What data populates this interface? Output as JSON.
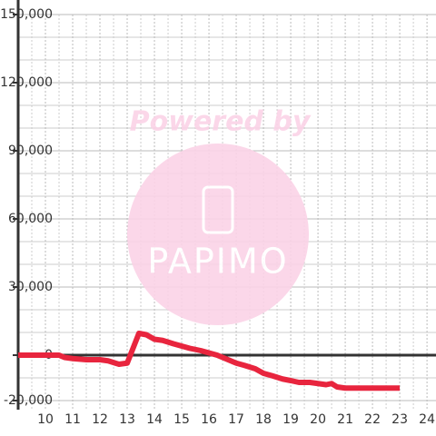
{
  "chart_data": {
    "type": "line",
    "watermark": {
      "top": "Powered by",
      "brand": "PAPIMO"
    },
    "x": [
      9,
      10.5,
      10.7,
      11,
      11.5,
      12,
      12.3,
      12.7,
      13,
      13.43,
      13.7,
      14,
      14.3,
      14.7,
      15,
      15.3,
      15.7,
      16,
      16.3,
      16.7,
      17,
      17.3,
      17.7,
      18,
      18.3,
      18.7,
      19,
      19.3,
      19.7,
      20,
      20.3,
      20.5,
      20.7,
      21,
      22,
      23
    ],
    "series": [
      {
        "color": "#e8253e",
        "values": [
          0,
          0,
          -1000,
          -1500,
          -2000,
          -2000,
          -2500,
          -4000,
          -3500,
          9600,
          9000,
          7000,
          6500,
          5000,
          4000,
          3000,
          2000,
          1000,
          0,
          -2000,
          -3500,
          -4500,
          -6000,
          -8000,
          -9000,
          -10500,
          -11200,
          -12000,
          -12000,
          -12500,
          -13000,
          -12500,
          -14000,
          -14500,
          -14500,
          -14500
        ]
      }
    ],
    "xlim": [
      9,
      24.33
    ],
    "xticks": [
      10,
      11,
      12,
      13,
      14,
      15,
      16,
      17,
      18,
      19,
      20,
      21,
      22,
      23,
      24
    ],
    "ylim": [
      -24000,
      150000
    ],
    "yticks": [
      {
        "value": -20000,
        "label": "-20,000"
      },
      0,
      {
        "value": 30000,
        "label": "30,000"
      },
      {
        "value": 60000,
        "label": "60,000"
      },
      {
        "value": 90000,
        "label": "90,000"
      },
      {
        "value": 120000,
        "label": "120,000"
      },
      {
        "value": 150000,
        "label": "150,000"
      }
    ],
    "grid": true
  }
}
